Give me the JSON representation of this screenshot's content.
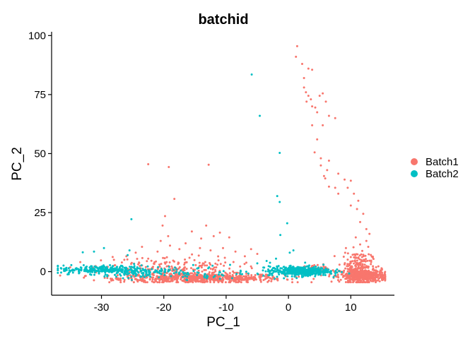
{
  "chart_data": {
    "type": "scatter",
    "title": "batchid",
    "xlabel": "PC_1",
    "ylabel": "PC_2",
    "xlim": [
      -38,
      17
    ],
    "ylim": [
      -10,
      101
    ],
    "x_ticks": [
      -30,
      -20,
      -10,
      0,
      10
    ],
    "y_ticks": [
      0,
      25,
      50,
      75,
      100
    ],
    "grid": false,
    "legend": {
      "position": "right"
    },
    "series": [
      {
        "name": "Batch1",
        "color": "#F8766D",
        "clusters": [
          {
            "center": [
              -14,
              -2.8
            ],
            "spread": [
              6.5,
              1.0
            ],
            "count": 650
          },
          {
            "center": [
              -19,
              1.2
            ],
            "spread": [
              5.5,
              2.6
            ],
            "count": 220
          },
          {
            "center": [
              12,
              -1.8
            ],
            "spread": [
              1.8,
              1.4
            ],
            "count": 500
          },
          {
            "center": [
              11,
              3.0
            ],
            "spread": [
              1.2,
              2.8
            ],
            "count": 150
          },
          {
            "center": [
              4,
              1.0
            ],
            "spread": [
              1.2,
              1.0
            ],
            "count": 30
          }
        ],
        "points": [
          [
            1.4,
            95.5
          ],
          [
            1.2,
            91
          ],
          [
            2.2,
            88
          ],
          [
            3.2,
            86
          ],
          [
            3.8,
            85.5
          ],
          [
            2.5,
            82
          ],
          [
            2.5,
            78
          ],
          [
            2.8,
            76
          ],
          [
            3.2,
            74.5
          ],
          [
            3.6,
            73
          ],
          [
            2.9,
            72
          ],
          [
            3.8,
            70
          ],
          [
            4.3,
            69.5
          ],
          [
            5.0,
            74.5
          ],
          [
            5.5,
            75.5
          ],
          [
            6.0,
            72
          ],
          [
            4.6,
            67.5
          ],
          [
            5.5,
            62
          ],
          [
            6.5,
            66
          ],
          [
            7.5,
            65
          ],
          [
            3.8,
            62
          ],
          [
            4.6,
            56
          ],
          [
            4.2,
            50.5
          ],
          [
            5.2,
            48
          ],
          [
            6.5,
            47
          ],
          [
            5.2,
            45
          ],
          [
            6.2,
            43
          ],
          [
            8.0,
            41.5
          ],
          [
            5.7,
            40.5
          ],
          [
            5.9,
            39.5
          ],
          [
            6.5,
            36
          ],
          [
            7.5,
            35.5
          ],
          [
            8.0,
            33
          ],
          [
            9.0,
            39
          ],
          [
            9.5,
            35.5
          ],
          [
            10.0,
            38.5
          ],
          [
            10.5,
            33
          ],
          [
            11.2,
            30
          ],
          [
            10.0,
            28
          ],
          [
            11.0,
            26.5
          ],
          [
            12.0,
            24.5
          ],
          [
            11.5,
            21
          ],
          [
            12.5,
            18
          ],
          [
            13.0,
            16
          ],
          [
            12.5,
            13
          ],
          [
            10.8,
            14.5
          ],
          [
            11.5,
            11.5
          ],
          [
            12.8,
            10.5
          ],
          [
            -22.5,
            45.5
          ],
          [
            -19.2,
            44.3
          ],
          [
            -12.8,
            45.3
          ],
          [
            -18.3,
            30.8
          ],
          [
            -19.8,
            23.5
          ],
          [
            -20.2,
            19.5
          ],
          [
            -19.3,
            15
          ],
          [
            -20.5,
            13
          ],
          [
            -15.5,
            17
          ],
          [
            -14.0,
            14
          ],
          [
            -13.2,
            19.5
          ],
          [
            -12.0,
            15
          ],
          [
            -11.0,
            16.5
          ],
          [
            -9.5,
            14.5
          ],
          [
            -16.5,
            12
          ],
          [
            -19.0,
            11
          ],
          [
            -17.5,
            9.5
          ],
          [
            -14.2,
            10
          ],
          [
            -12.5,
            9
          ],
          [
            -10.5,
            10
          ],
          [
            -8.5,
            8.5
          ],
          [
            -7.0,
            6.5
          ],
          [
            -6.0,
            9.5
          ],
          [
            -5.0,
            7.5
          ],
          [
            -23.5,
            10.5
          ],
          [
            -24.5,
            8
          ],
          [
            -26.0,
            6.5
          ],
          [
            -21.0,
            8.5
          ],
          [
            -28.0,
            5
          ],
          [
            -22.5,
            5.5
          ]
        ]
      },
      {
        "name": "Batch2",
        "color": "#00BFC4",
        "clusters": [
          {
            "center": [
              -30,
              0.8
            ],
            "spread": [
              3.2,
              0.9
            ],
            "count": 230
          },
          {
            "center": [
              -23,
              0.0
            ],
            "spread": [
              3.5,
              1.3
            ],
            "count": 120
          },
          {
            "center": [
              1.8,
              0.2
            ],
            "spread": [
              2.4,
              1.0
            ],
            "count": 460
          },
          {
            "center": [
              -14,
              -0.5
            ],
            "spread": [
              7.0,
              1.5
            ],
            "count": 70
          }
        ],
        "points": [
          [
            -5.9,
            83.5
          ],
          [
            -4.6,
            66
          ],
          [
            -1.4,
            50.3
          ],
          [
            -1.8,
            32
          ],
          [
            -1.4,
            29.5
          ],
          [
            -25.2,
            22.2
          ],
          [
            -0.2,
            20.5
          ],
          [
            -1.3,
            15.5
          ],
          [
            -29.6,
            10
          ],
          [
            -31.2,
            8.5
          ],
          [
            -33.0,
            8.2
          ],
          [
            -25.5,
            9.0
          ],
          [
            -25.8,
            7.0
          ],
          [
            0.2,
            8.0
          ],
          [
            0.8,
            9.0
          ],
          [
            -3.5,
            4.5
          ],
          [
            -5.0,
            3.5
          ],
          [
            -2.0,
            5.5
          ],
          [
            -36.5,
            1.5
          ],
          [
            -35.0,
            0.3
          ]
        ]
      }
    ]
  }
}
